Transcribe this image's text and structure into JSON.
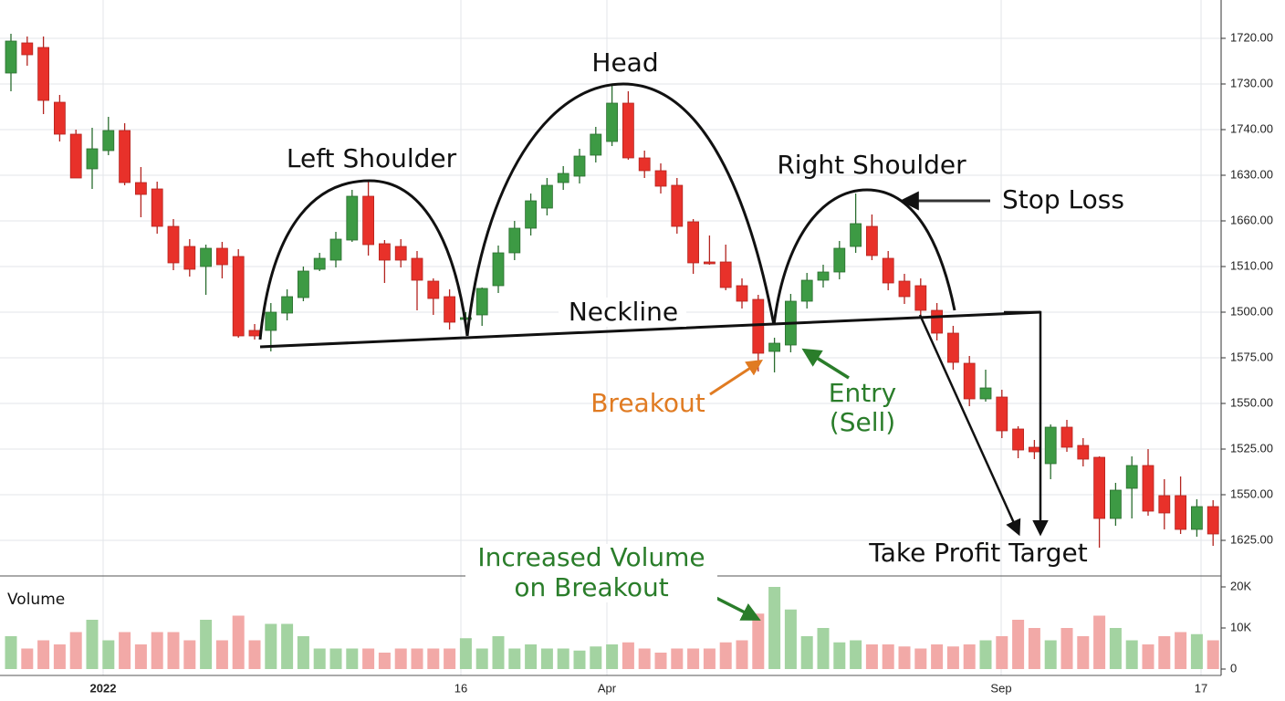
{
  "chart_data": {
    "type": "candlestick",
    "ylim": [
      0,
      126
    ],
    "price_axis_labels": [
      "1720.00",
      "1730.00",
      "1740.00",
      "1630.00",
      "1660.00",
      "1510.00",
      "1500.00",
      "1575.00",
      "1550.00",
      "1525.00",
      "1550.00",
      "1625.00"
    ],
    "x_axis_labels": [
      "2022",
      "16",
      "Apr",
      "Sep",
      "17"
    ],
    "up_color": "#3d9a44",
    "down_color": "#e8312a",
    "open": [
      110,
      116.6,
      115.6,
      103.6,
      96.6,
      89,
      93,
      97.4,
      86,
      84.6,
      76.4,
      72,
      67.6,
      71.6,
      69.8,
      53.6,
      53.6,
      57.4,
      60.8,
      67,
      69,
      73.4,
      83,
      72.6,
      72,
      69.4,
      64.4,
      61,
      56,
      57,
      63.4,
      70.6,
      76,
      80.4,
      86,
      87.4,
      92,
      95,
      103.4,
      91.4,
      88.6,
      85.4,
      77.4,
      68.6,
      68.6,
      63.4,
      60.4,
      49,
      50.4,
      60,
      64.6,
      66.4,
      72,
      76.4,
      69.4,
      64.4,
      63.4,
      58,
      53,
      46.4,
      38.6,
      39,
      32,
      28,
      24.4,
      32.4,
      28.4,
      25.8,
      12.4,
      19,
      24,
      17.4,
      17.4,
      10,
      15
    ],
    "high": [
      118.6,
      118,
      118,
      105.2,
      97.6,
      98,
      100.4,
      99,
      89.4,
      86.2,
      78,
      73.6,
      72.4,
      73,
      71.4,
      55,
      59.6,
      62.6,
      67.6,
      70.6,
      75.2,
      84.4,
      86.4,
      73.4,
      73.6,
      71,
      65,
      62.6,
      57.6,
      63,
      72.2,
      77.6,
      83.6,
      87,
      89.6,
      93.4,
      98.2,
      107.6,
      106,
      93,
      90.2,
      87,
      78,
      74.4,
      72.4,
      65,
      61.4,
      52,
      61.6,
      66.2,
      68,
      73.2,
      83.6,
      79,
      71,
      66,
      65,
      59.6,
      54.6,
      48,
      45,
      40.6,
      32.6,
      29.6,
      33,
      34,
      30,
      26,
      20.2,
      26,
      27.6,
      21,
      21.6,
      16.6,
      16.4
    ],
    "low": [
      106,
      111.6,
      101,
      95,
      87,
      84.6,
      92,
      85.4,
      78.4,
      74.8,
      66.8,
      65.4,
      61.4,
      65,
      52,
      51.6,
      49,
      55.8,
      60,
      66.6,
      67.4,
      73,
      70,
      64,
      67.4,
      58,
      57,
      53.8,
      54.8,
      54.6,
      61.8,
      69,
      74.4,
      78.8,
      84.4,
      85.8,
      90.4,
      94,
      91,
      87,
      83.6,
      74.8,
      66,
      68,
      62.4,
      58.4,
      44.6,
      44.4,
      48.8,
      58.4,
      63,
      64.8,
      70.6,
      69,
      62.4,
      59.4,
      56.4,
      51.4,
      45,
      37,
      38,
      30,
      25.6,
      25.4,
      21,
      27,
      23.8,
      6,
      10.8,
      12.4,
      13,
      10,
      9,
      8.4,
      6.4
    ],
    "close": [
      117,
      114,
      104,
      96.6,
      87,
      93.4,
      97.4,
      86,
      83.4,
      76.4,
      68.4,
      67,
      71.6,
      68,
      52.4,
      52.4,
      57.6,
      61,
      66.6,
      69.4,
      73.6,
      83,
      72.4,
      69,
      69,
      64.6,
      60.6,
      55.4,
      56.4,
      62.8,
      70.6,
      76,
      82,
      85.4,
      88,
      91.8,
      96.6,
      103.4,
      91.4,
      88.6,
      85.2,
      76.4,
      68.4,
      68.2,
      63,
      60,
      48.6,
      50.8,
      60,
      64.6,
      66.4,
      71.6,
      77,
      70,
      64,
      61,
      58,
      53,
      46.6,
      38.6,
      41,
      31.6,
      27.4,
      27,
      32.4,
      28,
      25.4,
      12.4,
      18.6,
      24,
      14,
      13.6,
      10,
      15,
      9
    ],
    "volume": {
      "title": "Volume",
      "up_color": "#a3d3a1",
      "down_color": "#f2a9a7",
      "ylim": [
        0,
        20000
      ],
      "yticks": [
        {
          "value": 20000,
          "label": "20K"
        },
        {
          "value": 10000,
          "label": "10K"
        },
        0
      ],
      "values": [
        8000,
        5000,
        7000,
        6000,
        9000,
        12000,
        7000,
        9000,
        6000,
        9000,
        9000,
        7000,
        12000,
        7000,
        13000,
        7000,
        11000,
        11000,
        8000,
        5000,
        5000,
        5000,
        5000,
        4000,
        5000,
        5000,
        5000,
        5000,
        7500,
        5000,
        8000,
        5000,
        6000,
        5000,
        5000,
        4500,
        5500,
        6000,
        6500,
        5000,
        4000,
        5000,
        5000,
        5000,
        6500,
        7000,
        13500,
        20000,
        14500,
        8000,
        10000,
        6500,
        7000,
        6000,
        6000,
        5500,
        5000,
        6000,
        5500,
        6000,
        7000,
        8000,
        12000,
        10000,
        7000,
        10000,
        8000,
        13000,
        10000,
        7000,
        6000,
        8000,
        9000,
        8500,
        7000
      ]
    },
    "annotations": {
      "left_shoulder": "Left Shoulder",
      "head": "Head",
      "right_shoulder": "Right Shoulder",
      "neckline": "Neckline",
      "stop_loss": "Stop Loss",
      "breakout": "Breakout",
      "entry": [
        "Entry",
        "(Sell)"
      ],
      "take_profit": "Take Profit Target",
      "volume_note": [
        "Increased Volume",
        "on Breakout"
      ]
    }
  }
}
